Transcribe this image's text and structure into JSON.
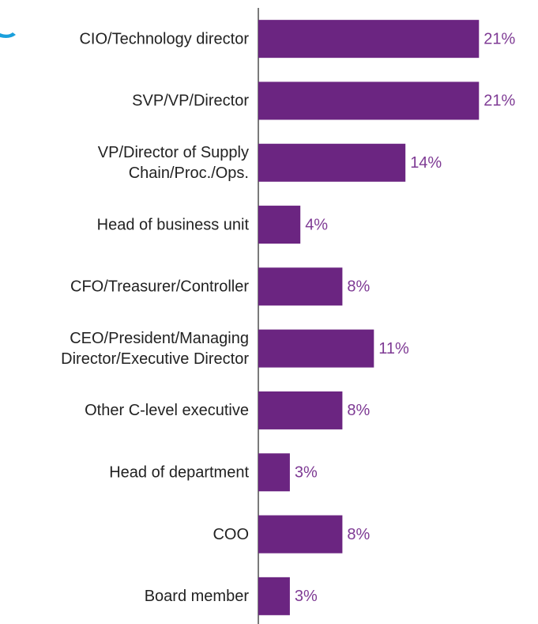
{
  "chart_data": {
    "type": "hbar",
    "categories": [
      "CIO/Technology director",
      "SVP/VP/Director",
      [
        "VP/Director of Supply",
        "Chain/Proc./Ops."
      ],
      "Head of business unit",
      "CFO/Treasurer/Controller",
      [
        "CEO/President/Managing",
        "Director/Executive Director"
      ],
      "Other C-level executive",
      "Head of department",
      "COO",
      "Board member"
    ],
    "values": [
      21,
      21,
      14,
      4,
      8,
      11,
      8,
      3,
      8,
      3
    ],
    "value_labels": [
      "21%",
      "21%",
      "14%",
      "4%",
      "8%",
      "11%",
      "8%",
      "3%",
      "8%",
      "3%"
    ],
    "color": "#6b2581",
    "label_color": "#7e3a94"
  }
}
